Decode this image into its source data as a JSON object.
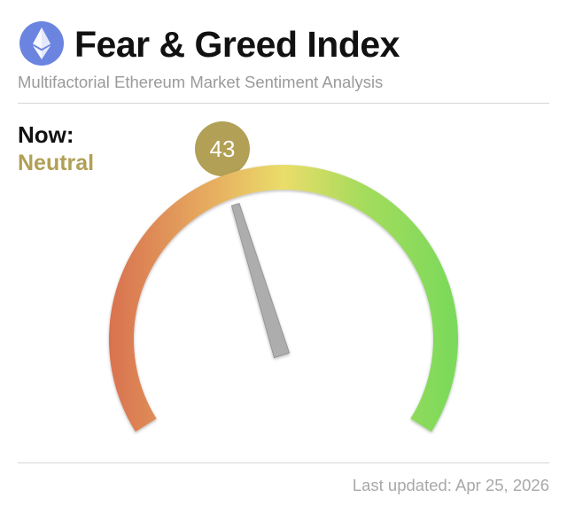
{
  "header": {
    "title": "Fear & Greed Index",
    "subtitle": "Multifactorial Ethereum Market Sentiment Analysis",
    "logo_icon": "ethereum-logo-icon"
  },
  "now": {
    "label": "Now:",
    "sentiment": "Neutral",
    "score": "43",
    "score_value": 43,
    "score_range": [
      0,
      100
    ]
  },
  "footer": {
    "last_updated": "Last updated: Apr 25, 2026"
  },
  "colors": {
    "accent_neutral": "#b1a055",
    "gauge_extreme_fear": "#d8704f",
    "gauge_fear": "#e7ae60",
    "gauge_neutral": "#eadd6a",
    "gauge_greed": "#a6dc5c",
    "gauge_extreme_greed": "#78d95a",
    "needle": "#adadad",
    "logo_bg": "#6b84e0"
  }
}
